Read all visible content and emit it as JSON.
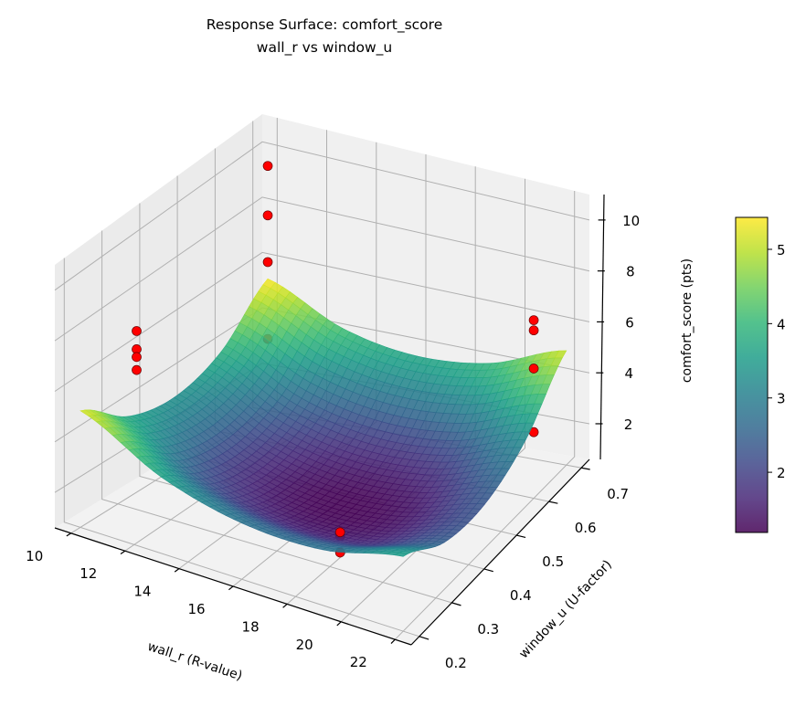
{
  "chart_data": {
    "type": "surface3d",
    "title": "Response Surface: comfort_score",
    "subtitle": "wall_r vs window_u",
    "xlabel": "wall_r (R-value)",
    "ylabel": "window_u (U-factor)",
    "zlabel": "comfort_score (pts)",
    "colorbar_label": "comfort_score (pts)",
    "colormap": "viridis",
    "xlim": [
      9.4,
      22.6
    ],
    "ylim": [
      0.175,
      0.725
    ],
    "zlim": [
      0.6,
      11
    ],
    "xticks": [
      "10",
      "12",
      "14",
      "16",
      "18",
      "20",
      "22"
    ],
    "yticks": [
      "0.2",
      "0.3",
      "0.4",
      "0.5",
      "0.6",
      "0.7"
    ],
    "zticks": [
      "2",
      "4",
      "6",
      "8",
      "10"
    ],
    "colorbar_range": [
      1.19,
      5.43
    ],
    "colorbar_ticks": [
      "2",
      "3",
      "4",
      "5"
    ],
    "grid": true,
    "surface": {
      "x": [
        10,
        13,
        16,
        19,
        22
      ],
      "y": [
        0.2,
        0.325,
        0.45,
        0.575,
        0.7
      ],
      "z": [
        [
          5.19,
          3.62,
          2.83,
          2.81,
          3.58
        ],
        [
          3.75,
          2.26,
          1.55,
          1.62,
          2.47
        ],
        [
          3.3,
          1.89,
          1.26,
          1.41,
          2.34
        ],
        [
          3.85,
          2.53,
          1.98,
          2.21,
          3.22
        ],
        [
          5.39,
          4.15,
          3.68,
          3.99,
          5.08
        ]
      ]
    },
    "scatter": {
      "color": "#ff0000",
      "points": [
        [
          10,
          0.7,
          9.5
        ],
        [
          10,
          0.7,
          7.7
        ],
        [
          10,
          0.7,
          6.0
        ],
        [
          10,
          0.7,
          3.2
        ],
        [
          10,
          0.35,
          6.8
        ],
        [
          10,
          0.35,
          6.1
        ],
        [
          10,
          0.35,
          5.8
        ],
        [
          10,
          0.35,
          5.3
        ],
        [
          22,
          0.6,
          7.6
        ],
        [
          22,
          0.6,
          7.2
        ],
        [
          22,
          0.6,
          5.7
        ],
        [
          22,
          0.6,
          3.2
        ],
        [
          18,
          0.33,
          1.6
        ],
        [
          18,
          0.33,
          1.45
        ],
        [
          18,
          0.33,
          0.8
        ]
      ]
    }
  }
}
